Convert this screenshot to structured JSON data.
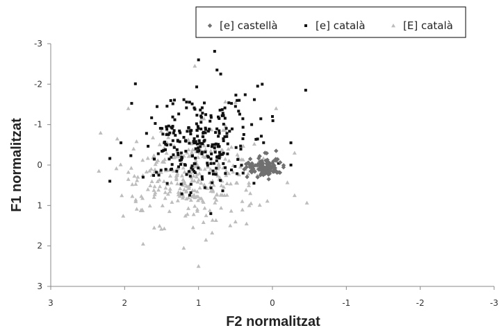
{
  "chart_data": {
    "type": "scatter",
    "xlabel": "F2 normalitzat",
    "ylabel": "F1 normalitzat",
    "xlim": [
      3,
      -3
    ],
    "ylim": [
      3,
      -3
    ],
    "x_inverted": true,
    "y_inverted": true,
    "xticks": [
      3,
      2,
      1,
      0,
      -1,
      -2,
      -3
    ],
    "yticks": [
      -3,
      -2,
      -1,
      0,
      1,
      2,
      3
    ],
    "xtick_labels": [
      "3",
      "2",
      "1",
      "0",
      "-1",
      "-2",
      "-3"
    ],
    "ytick_labels": [
      "-3",
      "-2",
      "-1",
      "0",
      "1",
      "2",
      "3"
    ],
    "grid": false,
    "legend_position": "top-right",
    "series": [
      {
        "name": "[e] castellà",
        "marker": "diamond",
        "color": "#707070",
        "center": [
          0.1,
          0.05
        ],
        "spread": [
          0.12,
          0.12
        ],
        "count": 110,
        "points": [
          [
            -0.05,
            -0.35
          ],
          [
            0.1,
            -0.3
          ],
          [
            0.3,
            -0.15
          ],
          [
            0.35,
            0.05
          ],
          [
            0.28,
            0.18
          ],
          [
            0.05,
            0.35
          ],
          [
            -0.05,
            0.15
          ],
          [
            0.2,
            0.3
          ]
        ]
      },
      {
        "name": "[e] català",
        "marker": "square",
        "color": "#111111",
        "center": [
          1.0,
          -0.6
        ],
        "spread": [
          0.38,
          0.55
        ],
        "count": 260,
        "points": [
          [
            -0.45,
            -1.85
          ],
          [
            0.2,
            -1.95
          ],
          [
            1.0,
            -2.6
          ],
          [
            0.75,
            -2.35
          ],
          [
            0.7,
            -2.25
          ],
          [
            2.2,
            0.4
          ],
          [
            2.05,
            -0.55
          ],
          [
            1.75,
            0.3
          ],
          [
            1.6,
            -0.15
          ],
          [
            -0.25,
            -0.55
          ],
          [
            -0.25,
            0.0
          ],
          [
            0.25,
            0.45
          ],
          [
            0.0,
            -1.2
          ],
          [
            0.45,
            -1.6
          ],
          [
            0.5,
            -1.45
          ],
          [
            0.4,
            -0.65
          ]
        ]
      },
      {
        "name": "[E] català",
        "marker": "triangle",
        "color": "#bdbdbd",
        "center": [
          1.1,
          0.3
        ],
        "spread": [
          0.45,
          0.55
        ],
        "count": 300,
        "points": [
          [
            1.95,
            -1.4
          ],
          [
            1.75,
            1.95
          ],
          [
            1.2,
            2.05
          ],
          [
            1.0,
            2.5
          ],
          [
            1.05,
            -2.45
          ],
          [
            -0.3,
            -0.3
          ],
          [
            -0.3,
            0.75
          ],
          [
            0.5,
            1.4
          ],
          [
            0.35,
            1.45
          ],
          [
            -0.05,
            -1.4
          ],
          [
            0.5,
            -1.55
          ],
          [
            2.1,
            -0.65
          ],
          [
            1.95,
            0.35
          ],
          [
            1.85,
            0.9
          ],
          [
            1.6,
            1.55
          ],
          [
            0.9,
            1.85
          ],
          [
            0.3,
            0.7
          ]
        ]
      }
    ]
  },
  "colors": {
    "castella": "#707070",
    "catala_e": "#111111",
    "catala_E": "#bdbdbd",
    "axis": "#888888"
  }
}
